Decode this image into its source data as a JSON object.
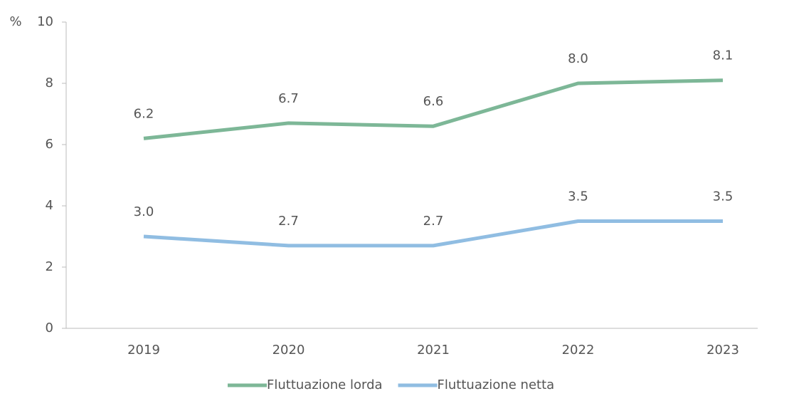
{
  "chart_data": {
    "type": "line",
    "y_unit": "%",
    "categories": [
      "2019",
      "2020",
      "2021",
      "2022",
      "2023"
    ],
    "series": [
      {
        "name": "Fluttuazione lorda",
        "color": "#7db797",
        "values": [
          6.2,
          6.7,
          6.6,
          8.0,
          8.1
        ],
        "value_labels": [
          "6.2",
          "6.7",
          "6.6",
          "8.0",
          "8.1"
        ]
      },
      {
        "name": "Fluttuazione netta",
        "color": "#90bde2",
        "values": [
          3.0,
          2.7,
          2.7,
          3.5,
          3.5
        ],
        "value_labels": [
          "3.0",
          "2.7",
          "2.7",
          "3.5",
          "3.5"
        ]
      }
    ],
    "ylim": [
      0,
      10
    ],
    "yticks": [
      0,
      2,
      4,
      6,
      8,
      10
    ],
    "grid": false,
    "legend": "bottom"
  }
}
